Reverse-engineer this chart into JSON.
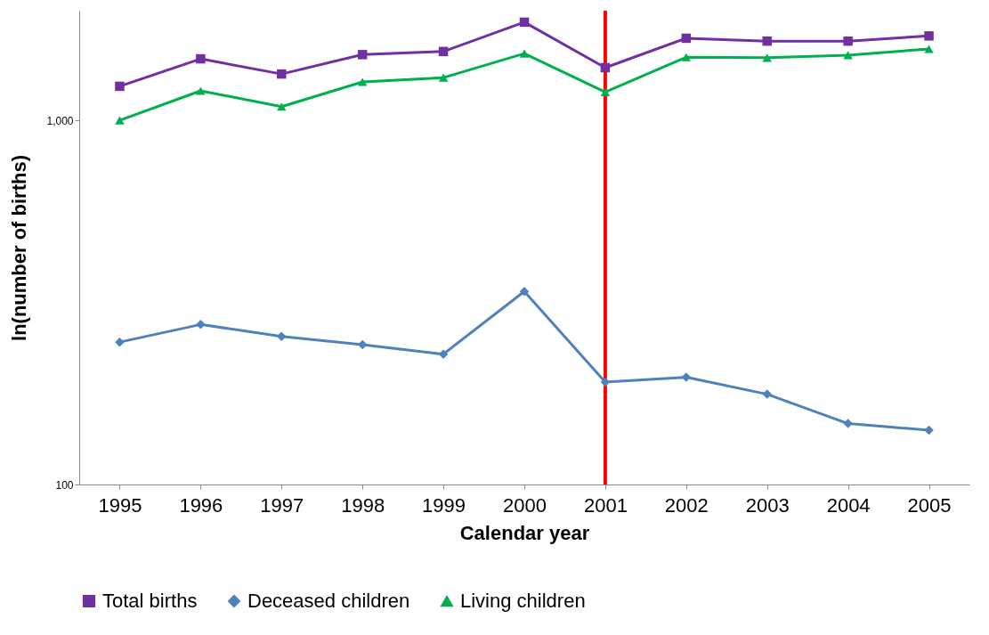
{
  "chart_data": {
    "type": "line",
    "xlabel": "Calendar year",
    "ylabel": "ln(number of births)",
    "categories": [
      "1995",
      "1996",
      "1997",
      "1998",
      "1999",
      "2000",
      "2001",
      "2002",
      "2003",
      "2004",
      "2005"
    ],
    "series": [
      {
        "name": "Total births",
        "color": "#7030a0",
        "marker": "square",
        "values": [
          1240,
          1475,
          1340,
          1515,
          1545,
          1860,
          1395,
          1680,
          1650,
          1650,
          1705
        ]
      },
      {
        "name": "Deceased children",
        "color": "#4f81bd",
        "marker": "diamond",
        "values": [
          246,
          275,
          255,
          242,
          228,
          339,
          191,
          197,
          177,
          147,
          141
        ]
      },
      {
        "name": "Living children",
        "color": "#00b050",
        "marker": "triangle",
        "values": [
          1000,
          1205,
          1090,
          1275,
          1310,
          1525,
          1195,
          1490,
          1485,
          1510,
          1570
        ]
      }
    ],
    "log": true,
    "ylim": [
      100,
      2000
    ],
    "yticks": [
      100,
      {
        "value": 1000,
        "label": "1,000"
      }
    ],
    "ref_lines": [
      {
        "axis": "x",
        "value": "2001",
        "color": "#ff0000"
      }
    ],
    "line_style": "solid",
    "grid": false,
    "legend": "bottom"
  }
}
